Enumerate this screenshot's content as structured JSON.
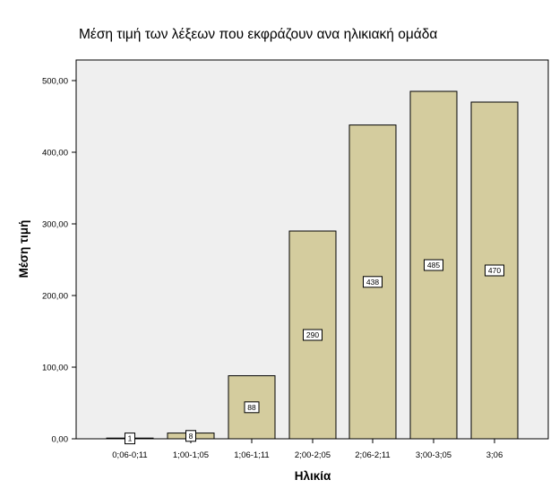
{
  "chart_data": {
    "type": "bar",
    "title": "Μέση τιμή των λέξεων που εκφράζουν ανα ηλικιακή ομάδα",
    "xlabel": "Ηλικία",
    "ylabel": "Μέση τιμή",
    "categories": [
      "0;06-0;11",
      "1;00-1;05",
      "1;06-1;11",
      "2;00-2;05",
      "2;06-2;11",
      "3;00-3;05",
      "3;06"
    ],
    "values": [
      1,
      8,
      88,
      290,
      438,
      485,
      470
    ],
    "data_labels": [
      "1",
      "8",
      "88",
      "290",
      "438",
      "485",
      "470"
    ],
    "ylim": [
      0,
      500
    ],
    "yticks": [
      0,
      100,
      200,
      300,
      400,
      500
    ],
    "ytick_labels": [
      "0,00",
      "100,00",
      "200,00",
      "300,00",
      "400,00",
      "500,00"
    ],
    "grid": false,
    "colors": {
      "bar_fill": "#d4cc9e",
      "bar_stroke": "#000000",
      "plot_background": "#efefef"
    }
  }
}
